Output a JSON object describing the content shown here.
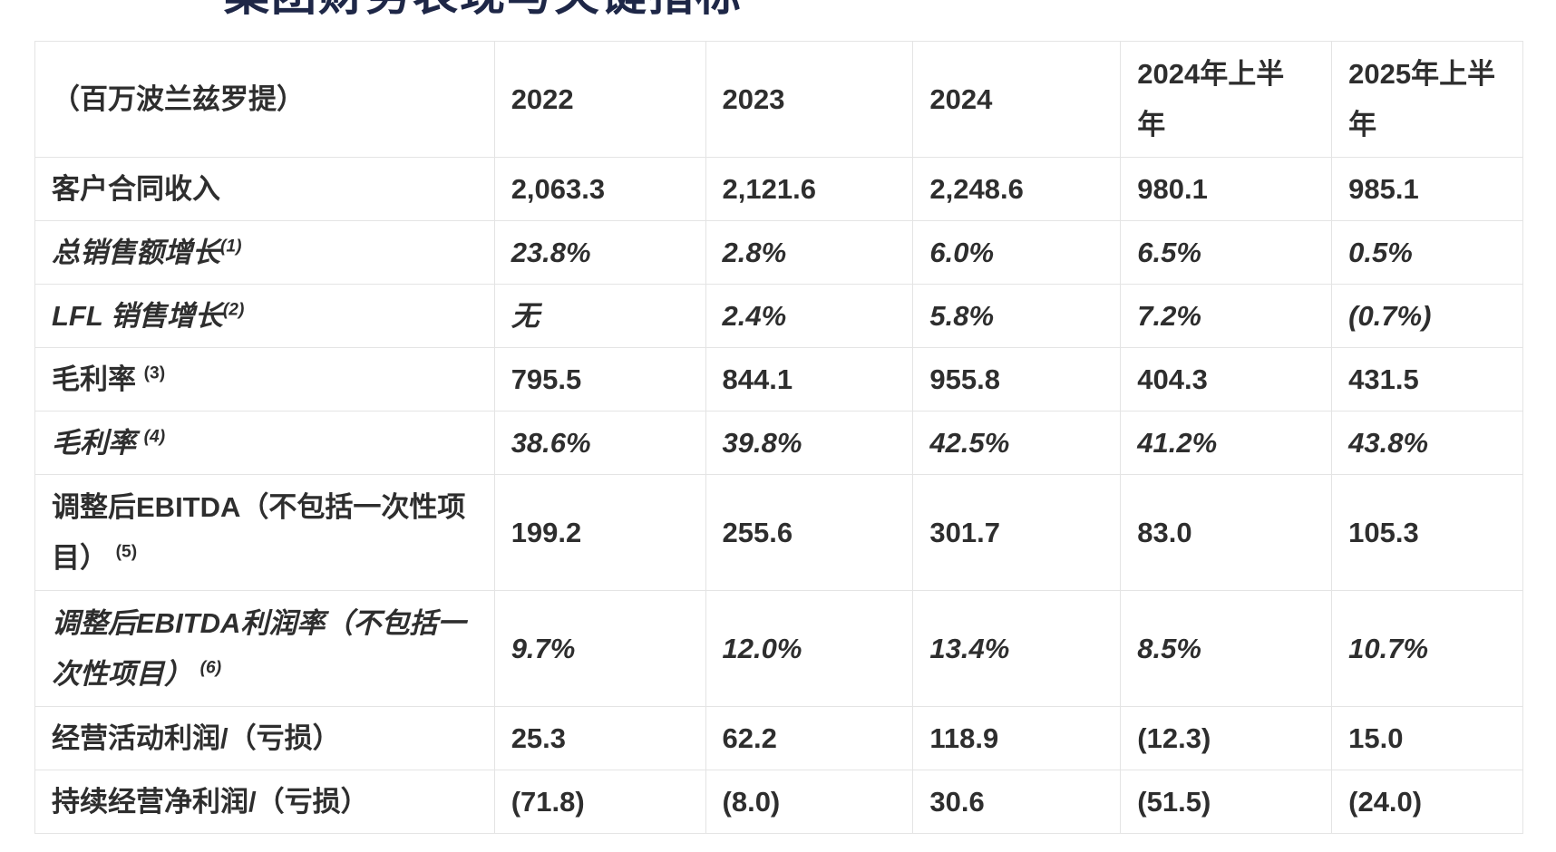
{
  "page": {
    "title": "集团财务表现与关键指标",
    "title_color": "#1e2747",
    "note": "标题顶部被裁切，仅字形底部可见"
  },
  "table": {
    "unit_label": "（百万波兰兹罗提）",
    "columns": [
      "2022",
      "2023",
      "2024",
      "2024年上半年",
      "2025年上半年"
    ],
    "rows": [
      {
        "label": "客户合同收入",
        "sup": "",
        "italic": false,
        "tall": false,
        "values": [
          "2,063.3",
          "2,121.6",
          "2,248.6",
          "980.1",
          "985.1"
        ]
      },
      {
        "label": "总销售额增长",
        "sup": "(1)",
        "italic": true,
        "tall": false,
        "values": [
          "23.8%",
          "2.8%",
          "6.0%",
          "6.5%",
          "0.5%"
        ]
      },
      {
        "label": "LFL 销售增长",
        "sup": "(2)",
        "italic": true,
        "tall": false,
        "values": [
          "无",
          "2.4%",
          "5.8%",
          "7.2%",
          "(0.7%)"
        ]
      },
      {
        "label": "毛利率 ",
        "sup": "(3)",
        "italic": false,
        "tall": false,
        "values": [
          "795.5",
          "844.1",
          "955.8",
          "404.3",
          "431.5"
        ]
      },
      {
        "label": "毛利率 ",
        "sup": "(4)",
        "italic": true,
        "tall": false,
        "values": [
          "38.6%",
          "39.8%",
          "42.5%",
          "41.2%",
          "43.8%"
        ]
      },
      {
        "label": "调整后EBITDA（不包括一次性项目） ",
        "sup": "(5)",
        "italic": false,
        "tall": true,
        "values": [
          "199.2",
          "255.6",
          "301.7",
          "83.0",
          "105.3"
        ]
      },
      {
        "label": "调整后EBITDA利润率（不包括一次性项目） ",
        "sup": "(6)",
        "italic": true,
        "tall": true,
        "values": [
          "9.7%",
          "12.0%",
          "13.4%",
          "8.5%",
          "10.7%"
        ]
      },
      {
        "label": "经营活动利润/（亏损）",
        "sup": "",
        "italic": false,
        "tall": false,
        "values": [
          "25.3",
          "62.2",
          "118.9",
          "(12.3)",
          "15.0"
        ]
      },
      {
        "label": "持续经营净利润/（亏损）",
        "sup": "",
        "italic": false,
        "tall": false,
        "values": [
          "(71.8)",
          "(8.0)",
          "30.6",
          "(51.5)",
          "(24.0)"
        ]
      }
    ]
  }
}
